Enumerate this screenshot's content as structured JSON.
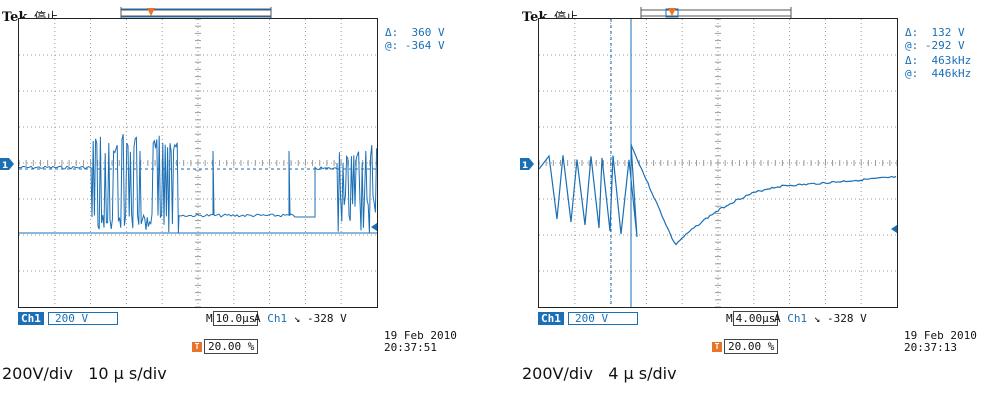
{
  "scopes": [
    {
      "brand": "Tek",
      "state": "停止",
      "measurements": {
        "delta_label": "Δ:",
        "delta_value": "360 V",
        "at_label": "@:",
        "at_value": "-364 V"
      },
      "ch1_label": "Ch1",
      "ch1_scale": "200 V",
      "timebase_prefix": "M",
      "timebase_value": "10.0μs",
      "trigger_mode": "A",
      "trigger_channel": "Ch1",
      "trigger_slope": "↘",
      "trigger_level": "-328 V",
      "trigger_position": "20.00 %",
      "date": "19 Feb  2010",
      "time": "20:37:51",
      "caption": "200V/div   10 μ s/div"
    },
    {
      "brand": "Tek",
      "state": "停止",
      "measurements": {
        "delta_label": "Δ:",
        "delta_value": "132 V",
        "at_label": "@:",
        "at_value": "-292 V",
        "freq_delta_label": "Δ:",
        "freq_delta_value": "463kHz",
        "freq_at_label": "@:",
        "freq_at_value": "446kHz"
      },
      "ch1_label": "Ch1",
      "ch1_scale": "200 V",
      "timebase_prefix": "M",
      "timebase_value": "4.00μs",
      "trigger_mode": "A",
      "trigger_channel": "Ch1",
      "trigger_slope": "↘",
      "trigger_level": "-328 V",
      "trigger_position": "20.00 %",
      "date": "19 Feb  2010",
      "time": "20:37:13",
      "caption": "200V/div   4 μ s/div"
    }
  ],
  "colors": {
    "trace": "#1a6fb5",
    "trigger_marker": "#e8742b",
    "grid": "#9a9a9a"
  },
  "icons": {
    "trigger": "trigger-t-icon",
    "channel_marker": "channel-1-marker-icon"
  }
}
